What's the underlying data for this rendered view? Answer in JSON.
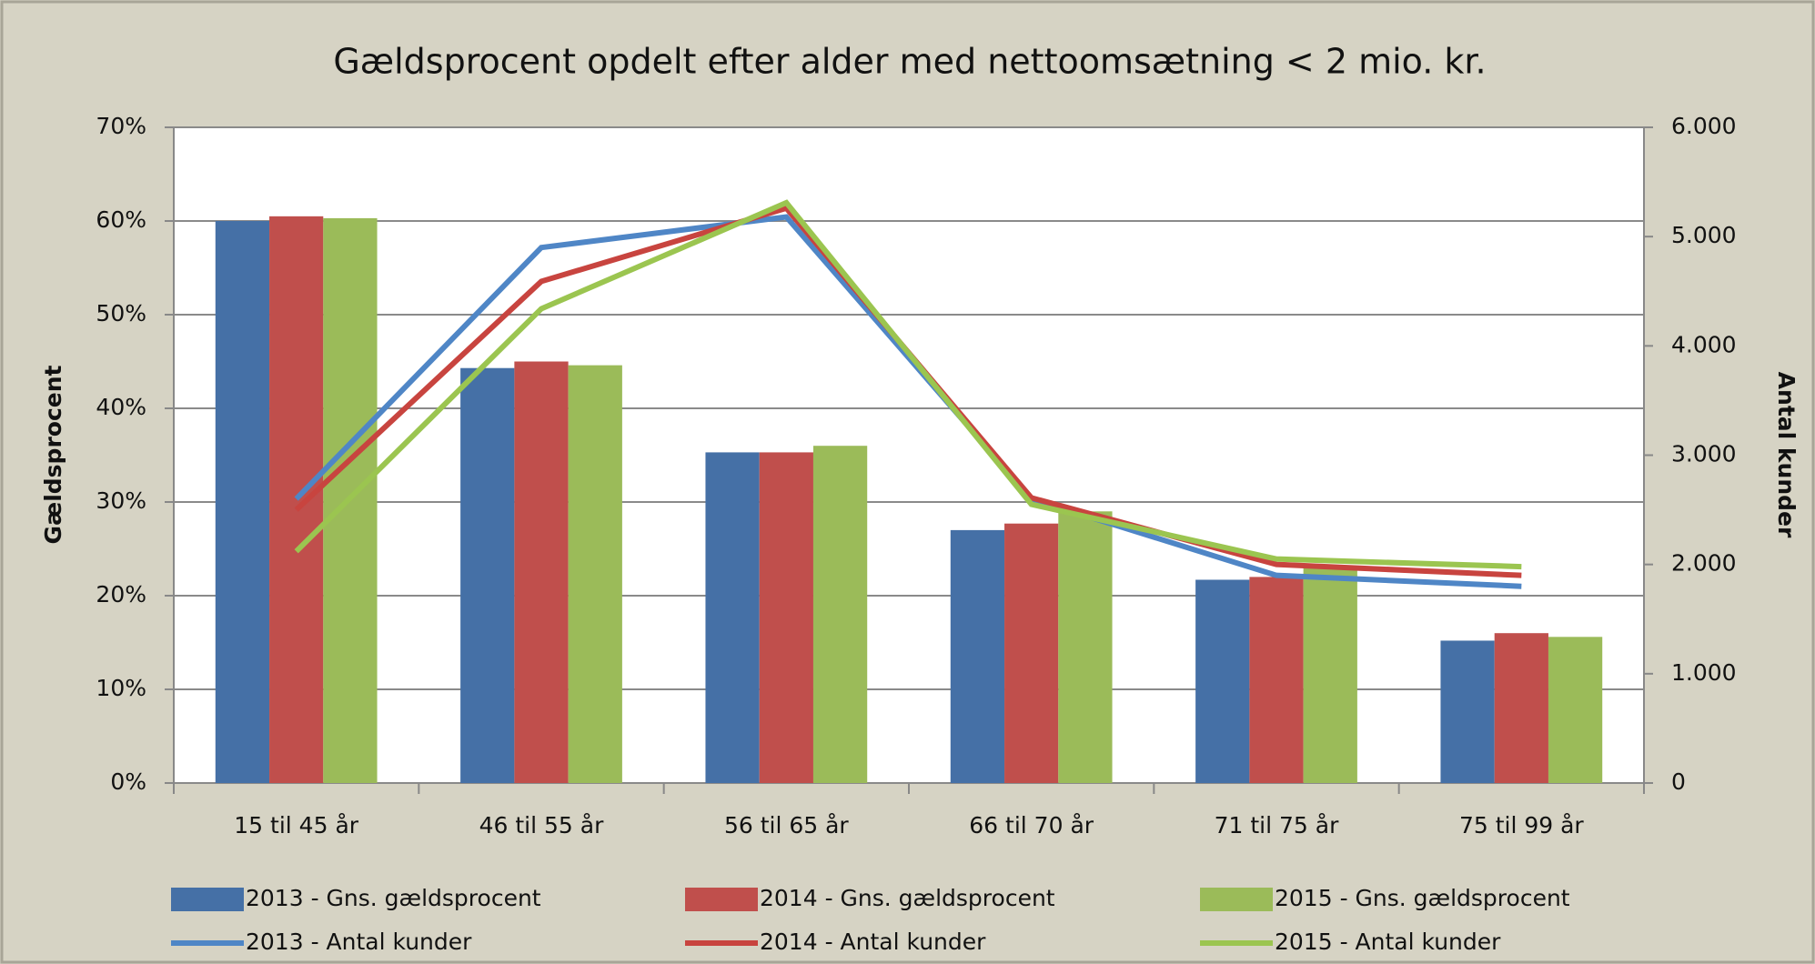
{
  "chart_data": {
    "type": "combo",
    "title": "Gældsprocent opdelt efter alder med nettoomsætning < 2 mio. kr.",
    "y_label": "Gældsprocent",
    "y2_label": "Antal kunder",
    "categories": [
      "15 til 45 år",
      "46 til 55 år",
      "56 til 65 år",
      "66 til 70 år",
      "71 til 75 år",
      "75 til 99 år"
    ],
    "ylim": [
      0,
      70
    ],
    "yticks": [
      {
        "value": 0,
        "label": "0%"
      },
      {
        "value": 10,
        "label": "10%"
      },
      {
        "value": 20,
        "label": "20%"
      },
      {
        "value": 30,
        "label": "30%"
      },
      {
        "value": 40,
        "label": "40%"
      },
      {
        "value": 50,
        "label": "50%"
      },
      {
        "value": 60,
        "label": "60%"
      },
      {
        "value": 70,
        "label": "70%"
      }
    ],
    "y2lim": [
      0,
      6000
    ],
    "y2ticks": [
      0,
      {
        "value": 1000,
        "label": "1.000"
      },
      {
        "value": 2000,
        "label": "2.000"
      },
      {
        "value": 3000,
        "label": "3.000"
      },
      {
        "value": 4000,
        "label": "4.000"
      },
      {
        "value": 5000,
        "label": "5.000"
      },
      {
        "value": 6000,
        "label": "6.000"
      }
    ],
    "grid": true,
    "legend": "bottom",
    "series": [
      {
        "name": "2013 - Gns. gældsprocent",
        "type": "bar",
        "color": "#4570a6",
        "values": [
          60,
          44.3,
          35.3,
          27,
          21.7,
          15.2
        ]
      },
      {
        "name": "2014 - Gns. gældsprocent",
        "type": "bar",
        "color": "#c04f4c",
        "values": [
          60.5,
          45,
          35.3,
          27.7,
          22,
          16
        ]
      },
      {
        "name": "2015 - Gns. gældsprocent",
        "type": "bar",
        "color": "#9bbb59",
        "values": [
          60.3,
          44.6,
          36,
          29,
          23,
          15.6
        ]
      },
      {
        "name": "2013 - Antal kunder",
        "type": "line",
        "axis": "y2",
        "color": "#4f86c6",
        "values": [
          2600,
          4900,
          5180,
          2600,
          1900,
          1800
        ]
      },
      {
        "name": "2014 - Antal kunder",
        "type": "line",
        "axis": "y2",
        "color": "#c8443f",
        "values": [
          2500,
          4590,
          5260,
          2610,
          2000,
          1900
        ]
      },
      {
        "name": "2015 - Antal kunder",
        "type": "line",
        "axis": "y2",
        "color": "#9bc550",
        "values": [
          2120,
          4340,
          5310,
          2550,
          2050,
          1980
        ]
      }
    ]
  }
}
